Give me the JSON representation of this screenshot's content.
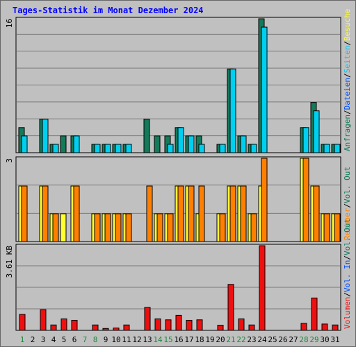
{
  "title": "Tages-Statistik im Monat Dezember 2024",
  "colors": {
    "background": "#c0c0c0",
    "grid": "#7a7a7a",
    "anfragen": "#137a5a",
    "dateien": "#00d0f0",
    "seiten": "#00c8f0",
    "besuche": "#ffff30",
    "rechner": "#ff8000",
    "volumen": "#ee1010",
    "title": "#0000ff"
  },
  "chart_data": [
    {
      "type": "bar",
      "panel": "top",
      "ytick_label": "16",
      "ylim": [
        0,
        16
      ],
      "x": [
        1,
        2,
        3,
        4,
        5,
        6,
        7,
        8,
        9,
        10,
        11,
        12,
        13,
        14,
        15,
        16,
        17,
        18,
        19,
        20,
        21,
        22,
        23,
        24,
        25,
        26,
        27,
        28,
        29,
        30,
        31
      ],
      "series": [
        {
          "name": "Anfragen",
          "color": "#137a5a",
          "values": [
            3,
            0,
            4,
            1,
            2,
            2,
            0,
            1,
            1,
            1,
            1,
            0,
            4,
            2,
            2,
            3,
            2,
            2,
            0,
            1,
            10,
            2,
            1,
            16,
            0,
            0,
            0,
            3,
            6,
            1,
            1
          ]
        },
        {
          "name": "Dateien",
          "color": "#00d0f0",
          "values": [
            2,
            0,
            4,
            1,
            0,
            2,
            0,
            1,
            1,
            1,
            1,
            0,
            0,
            0,
            1,
            3,
            2,
            1,
            0,
            1,
            10,
            2,
            1,
            15,
            0,
            0,
            0,
            3,
            5,
            1,
            1
          ]
        }
      ],
      "right_legend": [
        {
          "text": "Anfragen",
          "color": "#137a5a"
        },
        {
          "text": "/",
          "color": "#000000"
        },
        {
          "text": "Dateien",
          "color": "#0050ff"
        },
        {
          "text": "/",
          "color": "#000000"
        },
        {
          "text": "Seiten",
          "color": "#00c8f0"
        },
        {
          "text": "/",
          "color": "#000000"
        },
        {
          "text": "Besuche",
          "color": "#ffff30"
        }
      ]
    },
    {
      "type": "bar",
      "panel": "middle",
      "ytick_label": "3",
      "ylim": [
        0,
        3
      ],
      "x": [
        1,
        2,
        3,
        4,
        5,
        6,
        7,
        8,
        9,
        10,
        11,
        12,
        13,
        14,
        15,
        16,
        17,
        18,
        19,
        20,
        21,
        22,
        23,
        24,
        25,
        26,
        27,
        28,
        29,
        30,
        31
      ],
      "series": [
        {
          "name": "Besuche",
          "color": "#ffff30",
          "values": [
            2,
            0,
            2,
            1,
            1,
            2,
            0,
            1,
            1,
            1,
            1,
            0,
            0,
            1,
            1,
            2,
            2,
            1,
            0,
            1,
            2,
            2,
            1,
            2,
            0,
            0,
            0,
            3,
            2,
            1,
            1
          ]
        },
        {
          "name": "Rechner",
          "color": "#ff8000",
          "values": [
            2,
            0,
            2,
            1,
            0,
            2,
            0,
            1,
            1,
            1,
            1,
            0,
            2,
            1,
            1,
            2,
            2,
            2,
            0,
            1,
            2,
            2,
            1,
            3,
            0,
            0,
            0,
            3,
            2,
            1,
            1
          ]
        }
      ],
      "right_legend": [
        {
          "text": "Rechner",
          "color": "#ff8000"
        },
        {
          "text": "/",
          "color": "#000000"
        },
        {
          "text": "Vol. Out",
          "color": "#137a5a"
        }
      ]
    },
    {
      "type": "bar",
      "panel": "bottom",
      "ytick_label": "3.61 KB",
      "ylim": [
        0,
        3.61
      ],
      "x": [
        1,
        2,
        3,
        4,
        5,
        6,
        7,
        8,
        9,
        10,
        11,
        12,
        13,
        14,
        15,
        16,
        17,
        18,
        19,
        20,
        21,
        22,
        23,
        24,
        25,
        26,
        27,
        28,
        29,
        30,
        31
      ],
      "series": [
        {
          "name": "Volumen",
          "color": "#ee1010",
          "values": [
            0.68,
            0,
            0.88,
            0.23,
            0.49,
            0.43,
            0,
            0.23,
            0.08,
            0.1,
            0.23,
            0,
            0.98,
            0.49,
            0.45,
            0.64,
            0.43,
            0.45,
            0,
            0.22,
            1.96,
            0.49,
            0.23,
            3.61,
            0,
            0,
            0,
            0.3,
            1.38,
            0.27,
            0.23
          ]
        }
      ],
      "right_legend": [
        {
          "text": "Volumen",
          "color": "#ee1010"
        },
        {
          "text": "/",
          "color": "#000000"
        },
        {
          "text": "Vol. In",
          "color": "#0050ff"
        },
        {
          "text": "/",
          "color": "#000000"
        },
        {
          "text": "Vol. Out",
          "color": "#137a5a"
        }
      ]
    }
  ],
  "x_labels": [
    {
      "text": "1",
      "weekend": true
    },
    {
      "text": "2",
      "weekend": false
    },
    {
      "text": "3",
      "weekend": false
    },
    {
      "text": "4",
      "weekend": false
    },
    {
      "text": "5",
      "weekend": false
    },
    {
      "text": "6",
      "weekend": false
    },
    {
      "text": "7",
      "weekend": true
    },
    {
      "text": "8",
      "weekend": true
    },
    {
      "text": "9",
      "weekend": false
    },
    {
      "text": "10",
      "weekend": false
    },
    {
      "text": "11",
      "weekend": false
    },
    {
      "text": "12",
      "weekend": false
    },
    {
      "text": "13",
      "weekend": false
    },
    {
      "text": "14",
      "weekend": true
    },
    {
      "text": "15",
      "weekend": true
    },
    {
      "text": "16",
      "weekend": false
    },
    {
      "text": "17",
      "weekend": false
    },
    {
      "text": "18",
      "weekend": false
    },
    {
      "text": "19",
      "weekend": false
    },
    {
      "text": "20",
      "weekend": false
    },
    {
      "text": "21",
      "weekend": true
    },
    {
      "text": "22",
      "weekend": true
    },
    {
      "text": "23",
      "weekend": false
    },
    {
      "text": "24",
      "weekend": false
    },
    {
      "text": "25",
      "weekend": false
    },
    {
      "text": "26",
      "weekend": false
    },
    {
      "text": "27",
      "weekend": false
    },
    {
      "text": "28",
      "weekend": true
    },
    {
      "text": "29",
      "weekend": true
    },
    {
      "text": "30",
      "weekend": false
    },
    {
      "text": "31",
      "weekend": false
    }
  ]
}
